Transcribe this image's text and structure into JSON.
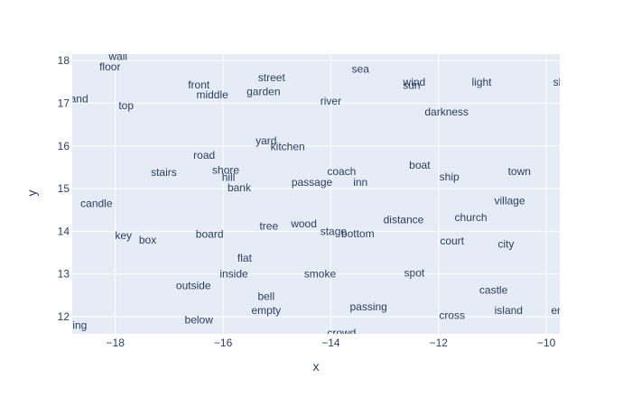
{
  "chart_data": {
    "type": "scatter",
    "mode": "text",
    "title": "",
    "xlabel": "x",
    "ylabel": "y",
    "xlim": [
      -18.8,
      -9.75
    ],
    "ylim": [
      11.6,
      18.15
    ],
    "xticks": [
      -18,
      -16,
      -14,
      -12,
      -10
    ],
    "yticks": [
      12,
      13,
      14,
      15,
      16,
      17,
      18
    ],
    "xtick_labels": [
      "−18",
      "−16",
      "−14",
      "−12",
      "−10"
    ],
    "ytick_labels": [
      "12",
      "13",
      "14",
      "15",
      "16",
      "17",
      "18"
    ],
    "grid": true,
    "background": "#e5ecf6",
    "points": [
      {
        "label": "wall",
        "x": -17.95,
        "y": 18.1
      },
      {
        "label": "floor",
        "x": -18.1,
        "y": 17.85
      },
      {
        "label": "sea",
        "x": -13.45,
        "y": 17.8
      },
      {
        "label": "street",
        "x": -15.1,
        "y": 17.6
      },
      {
        "label": "wind",
        "x": -12.45,
        "y": 17.5
      },
      {
        "label": "sun",
        "x": -12.5,
        "y": 17.42
      },
      {
        "label": "light",
        "x": -11.2,
        "y": 17.5
      },
      {
        "label": "front",
        "x": -16.45,
        "y": 17.43
      },
      {
        "label": "garden",
        "x": -15.25,
        "y": 17.27
      },
      {
        "label": "middle",
        "x": -16.2,
        "y": 17.2
      },
      {
        "label": "sl",
        "x": -9.8,
        "y": 17.5
      },
      {
        "label": "stand",
        "x": -18.75,
        "y": 17.1
      },
      {
        "label": "top",
        "x": -17.8,
        "y": 16.95
      },
      {
        "label": "river",
        "x": -14.0,
        "y": 17.05
      },
      {
        "label": "darkness",
        "x": -11.85,
        "y": 16.8
      },
      {
        "label": "yard",
        "x": -15.2,
        "y": 16.12
      },
      {
        "label": "kitchen",
        "x": -14.8,
        "y": 15.98
      },
      {
        "label": "road",
        "x": -16.35,
        "y": 15.78
      },
      {
        "label": "boat",
        "x": -12.35,
        "y": 15.55
      },
      {
        "label": "stairs",
        "x": -17.1,
        "y": 15.38
      },
      {
        "label": "shore",
        "x": -15.95,
        "y": 15.43
      },
      {
        "label": "coach",
        "x": -13.8,
        "y": 15.4
      },
      {
        "label": "town",
        "x": -10.5,
        "y": 15.4
      },
      {
        "label": "hill",
        "x": -15.9,
        "y": 15.27
      },
      {
        "label": "ship",
        "x": -11.8,
        "y": 15.28
      },
      {
        "label": "passage",
        "x": -14.35,
        "y": 15.15
      },
      {
        "label": "inn",
        "x": -13.45,
        "y": 15.15
      },
      {
        "label": "bank",
        "x": -15.7,
        "y": 15.02
      },
      {
        "label": "candle",
        "x": -18.35,
        "y": 14.65
      },
      {
        "label": "village",
        "x": -10.68,
        "y": 14.72
      },
      {
        "label": "church",
        "x": -11.4,
        "y": 14.33
      },
      {
        "label": "distance",
        "x": -12.65,
        "y": 14.27
      },
      {
        "label": "wood",
        "x": -14.5,
        "y": 14.18
      },
      {
        "label": "tree",
        "x": -15.15,
        "y": 14.13
      },
      {
        "label": "stage",
        "x": -13.95,
        "y": 14.0
      },
      {
        "label": "bottom",
        "x": -13.5,
        "y": 13.95
      },
      {
        "label": "key",
        "x": -17.85,
        "y": 13.9
      },
      {
        "label": "board",
        "x": -16.25,
        "y": 13.93
      },
      {
        "label": "box",
        "x": -17.4,
        "y": 13.8
      },
      {
        "label": "court",
        "x": -11.75,
        "y": 13.78
      },
      {
        "label": "city",
        "x": -10.75,
        "y": 13.7
      },
      {
        "label": "flat",
        "x": -15.6,
        "y": 13.37
      },
      {
        "label": "inside",
        "x": -15.8,
        "y": 13.0
      },
      {
        "label": "smoke",
        "x": -14.2,
        "y": 13.0
      },
      {
        "label": "spot",
        "x": -12.45,
        "y": 13.03
      },
      {
        "label": "outside",
        "x": -16.55,
        "y": 12.73
      },
      {
        "label": "castle",
        "x": -10.98,
        "y": 12.63
      },
      {
        "label": "bell",
        "x": -15.2,
        "y": 12.48
      },
      {
        "label": "passing",
        "x": -13.3,
        "y": 12.23
      },
      {
        "label": "empty",
        "x": -15.2,
        "y": 12.15
      },
      {
        "label": "island",
        "x": -10.7,
        "y": 12.15
      },
      {
        "label": "en",
        "x": -9.8,
        "y": 12.15
      },
      {
        "label": "cross",
        "x": -11.75,
        "y": 12.03
      },
      {
        "label": "below",
        "x": -16.45,
        "y": 11.93
      },
      {
        "label": "spring",
        "x": -18.8,
        "y": 11.8
      },
      {
        "label": "crowd",
        "x": -13.8,
        "y": 11.62
      }
    ]
  }
}
